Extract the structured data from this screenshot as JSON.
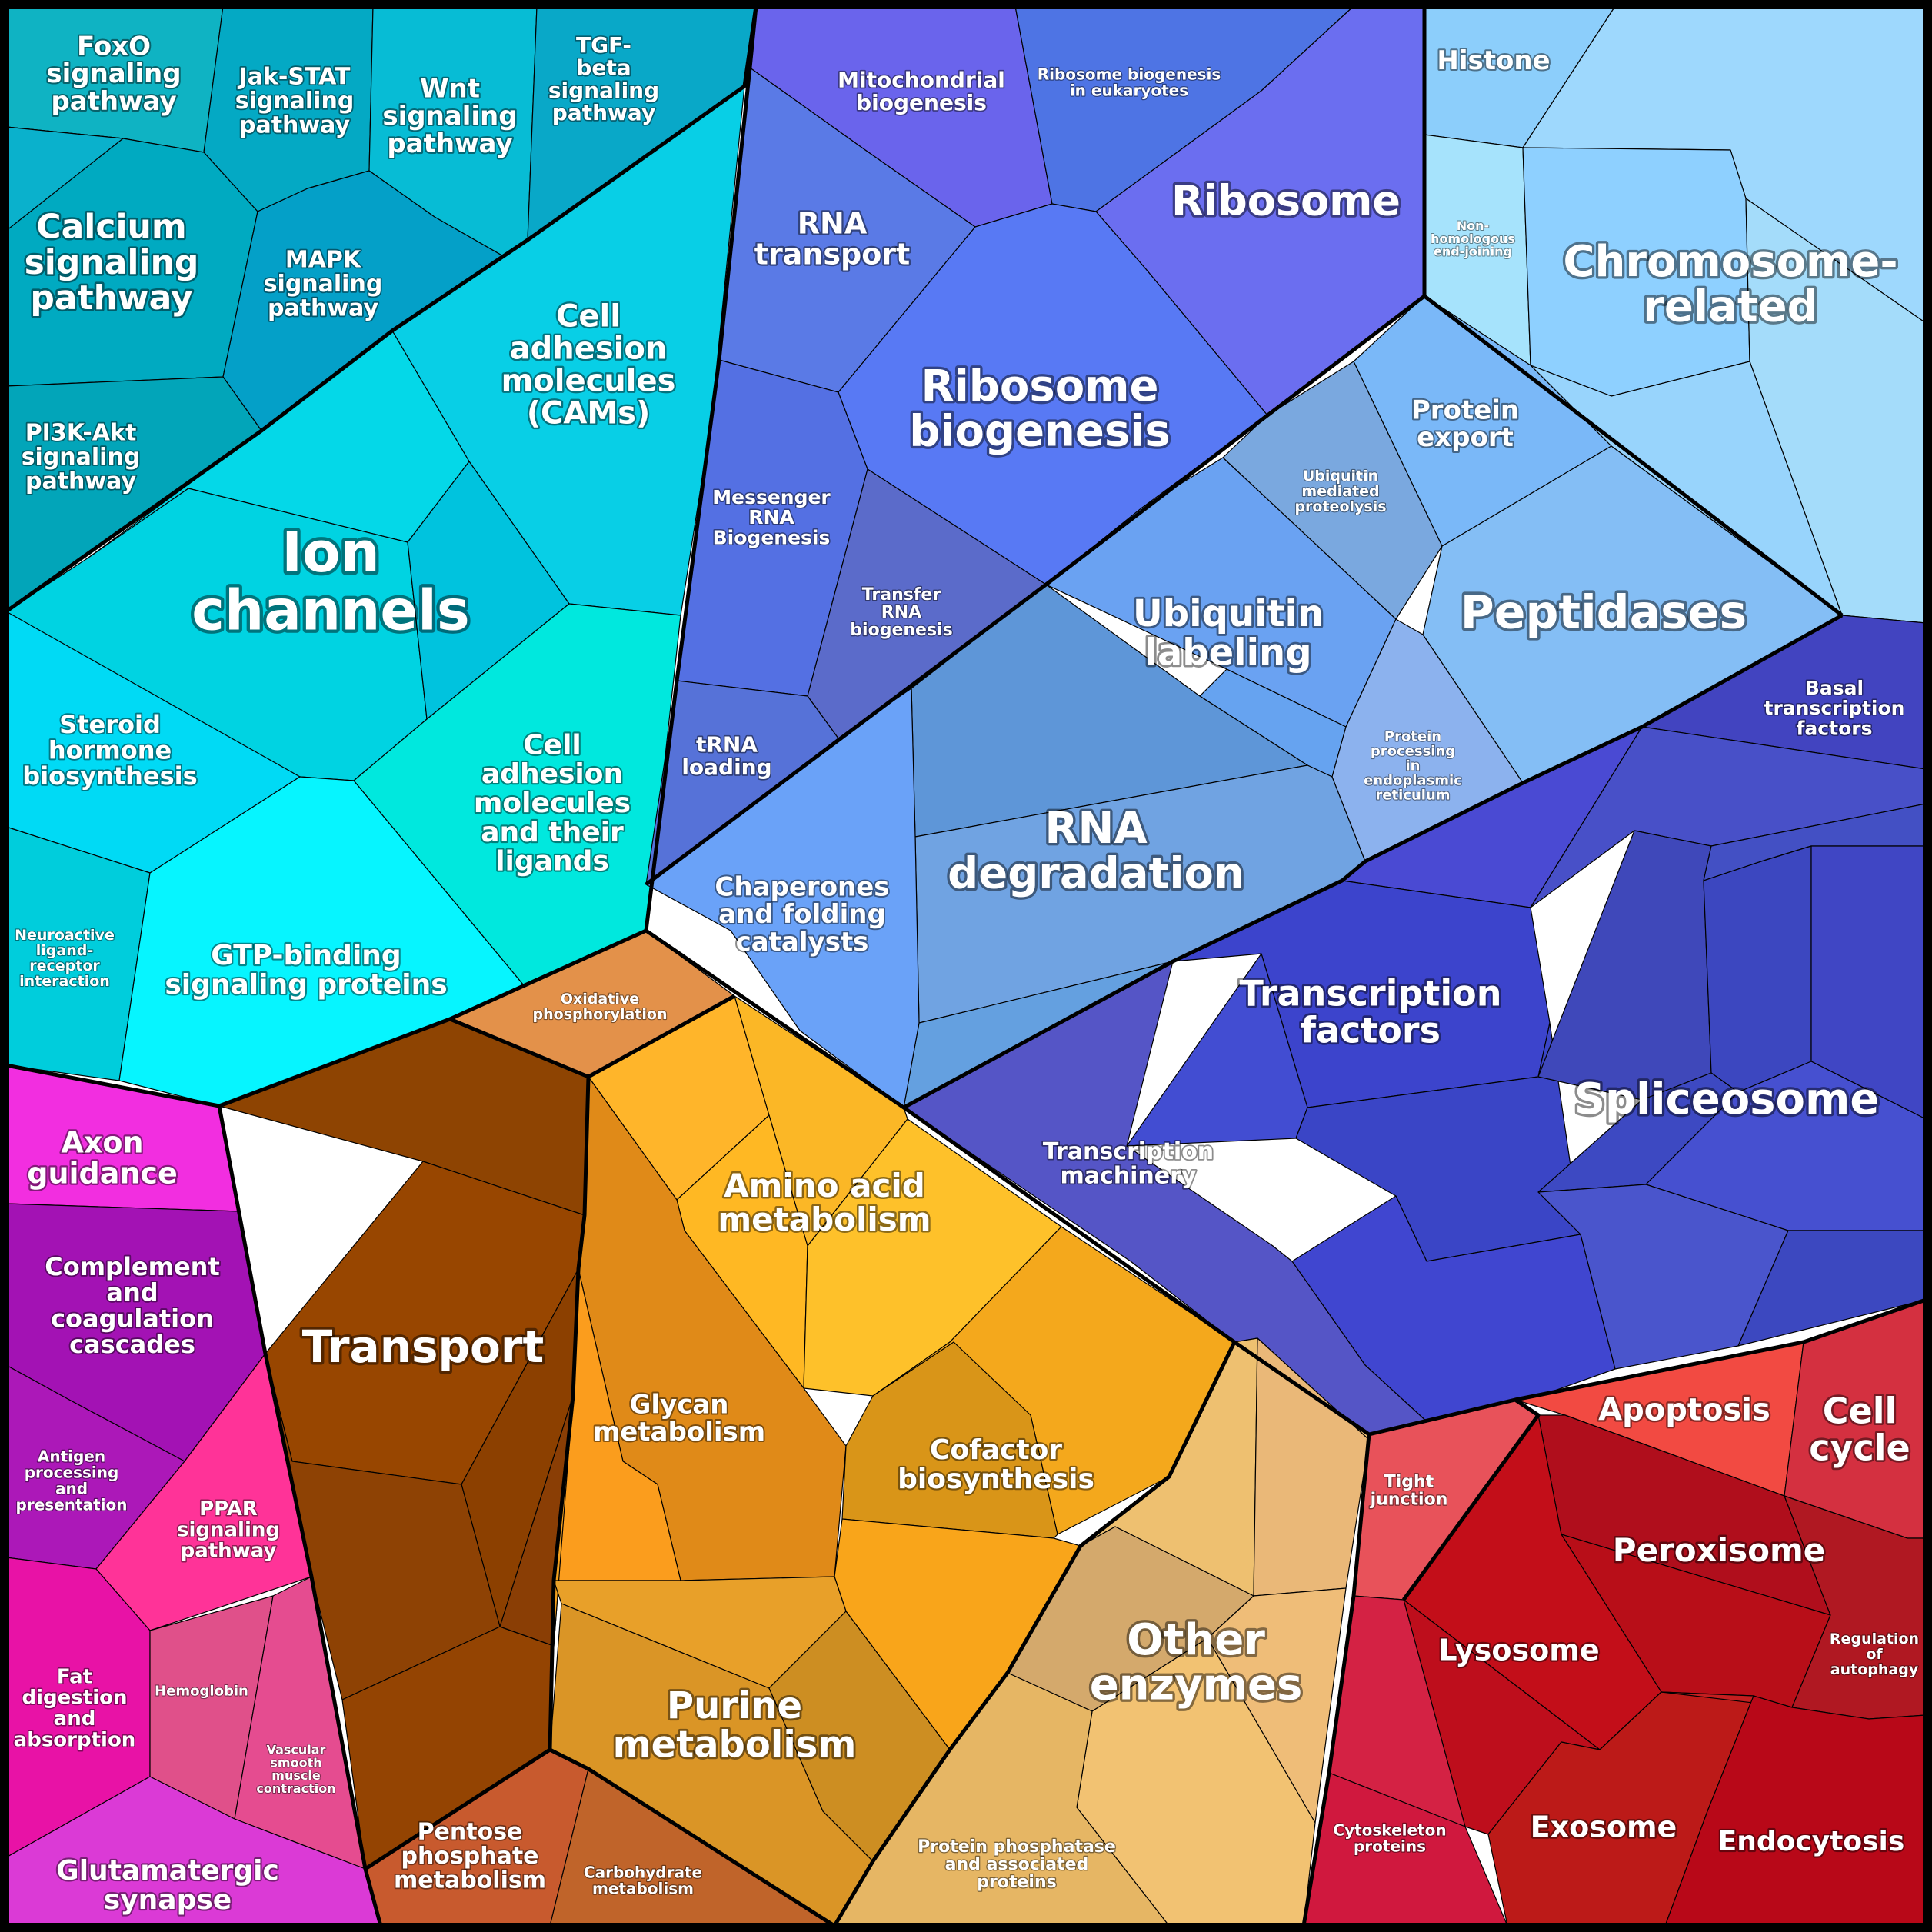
{
  "title": "",
  "regions": [
    {
      "id": "signaling",
      "color": "#08b8cf",
      "labels": [
        {
          "text": "FoxO\nsignaling\npathway",
          "size": 34
        },
        {
          "text": "Jak-STAT\nsignaling\npathway",
          "size": 30
        },
        {
          "text": "Wnt\nsignaling\npathway",
          "size": 34
        },
        {
          "text": "TGF-\nbeta\nsignaling\npathway",
          "size": 28
        },
        {
          "text": "Calcium\nsignaling\npathway",
          "size": 44
        },
        {
          "text": "MAPK\nsignaling\npathway",
          "size": 30
        },
        {
          "text": "PI3K-Akt\nsignaling\npathway",
          "size": 30
        }
      ]
    },
    {
      "id": "channels",
      "color": "#05d6ea",
      "labels": [
        {
          "text": "Cell\nadhesion\nmolecules\n(CAMs)",
          "size": 40
        },
        {
          "text": "Ion\nchannels",
          "size": 72
        },
        {
          "text": "Steroid\nhormone\nbiosynthesis",
          "size": 32
        },
        {
          "text": "Cell\nadhesion\nmolecules\nand their\nligands",
          "size": 36
        },
        {
          "text": "Neuroactive\nligand-\nreceptor\ninteraction",
          "size": 19
        },
        {
          "text": "GTP-binding\nsignaling proteins",
          "size": 36
        }
      ]
    },
    {
      "id": "ribosome",
      "color": "#5a72ee",
      "labels": [
        {
          "text": "Mitochondrial\nbiogenesis",
          "size": 28
        },
        {
          "text": "Ribosome biogenesis\nin eukaryotes",
          "size": 20
        },
        {
          "text": "Ribosome",
          "size": 54
        },
        {
          "text": "RNA\ntransport",
          "size": 38
        },
        {
          "text": "Ribosome\nbiogenesis",
          "size": 56
        },
        {
          "text": "Messenger\nRNA\nBiogenesis",
          "size": 25
        },
        {
          "text": "Transfer\nRNA\nbiogenesis",
          "size": 22
        },
        {
          "text": "tRNA\nloading",
          "size": 28
        }
      ]
    },
    {
      "id": "chromosome",
      "color": "#9ad6fb",
      "labels": [
        {
          "text": "Histone",
          "size": 34
        },
        {
          "text": "Non-\nhomologous\nend-joining",
          "size": 16
        },
        {
          "text": "Chromosome-\nrelated",
          "size": 56
        }
      ]
    },
    {
      "id": "proteolysis",
      "color": "#78b2ef",
      "labels": [
        {
          "text": "Protein\nexport",
          "size": 34
        },
        {
          "text": "Ubiquitin\nmediated\nproteolysis",
          "size": 19
        },
        {
          "text": "Peptidases",
          "size": 60
        },
        {
          "text": "Ubiquitin\nlabeling",
          "size": 48
        },
        {
          "text": "Protein\nprocessing\nin\nendoplasmic\nreticulum",
          "size": 18
        },
        {
          "text": "RNA\ndegradation",
          "size": 56
        },
        {
          "text": "Chaperones\nand folding\ncatalysts",
          "size": 34
        }
      ]
    },
    {
      "id": "transcription",
      "color": "#4450cc",
      "labels": [
        {
          "text": "Basal\ntranscription\nfactors",
          "size": 25
        },
        {
          "text": "Transcription\nfactors",
          "size": 46
        },
        {
          "text": "Spliceosome",
          "size": 56
        },
        {
          "text": "Transcription\nmachinery",
          "size": 30
        }
      ]
    },
    {
      "id": "immune",
      "color": "#c01ab8",
      "labels": [
        {
          "text": "Axon\nguidance",
          "size": 38
        },
        {
          "text": "Complement\nand\ncoagulation\ncascades",
          "size": 32
        },
        {
          "text": "Antigen\nprocessing\nand\npresentation",
          "size": 20
        },
        {
          "text": "PPAR\nsignaling\npathway",
          "size": 26
        },
        {
          "text": "Fat\ndigestion\nand\nabsorption",
          "size": 26
        },
        {
          "text": "Hemoglobin",
          "size": 18
        },
        {
          "text": "Vascular\nsmooth\nmuscle\ncontraction",
          "size": 16
        },
        {
          "text": "Glutamatergic\nsynapse",
          "size": 36
        }
      ]
    },
    {
      "id": "transport",
      "color": "#944400",
      "labels": [
        {
          "text": "Transport",
          "size": 58
        },
        {
          "text": "Oxidative\nphosphorylation",
          "size": 19
        },
        {
          "text": "Pentose\nphosphate\nmetabolism",
          "size": 30
        },
        {
          "text": "Carbohydrate\nmetabolism",
          "size": 20
        }
      ]
    },
    {
      "id": "metabolism",
      "color": "#f4ac22",
      "labels": [
        {
          "text": "Amino acid\nmetabolism",
          "size": 42
        },
        {
          "text": "Glycan\nmetabolism",
          "size": 34
        },
        {
          "text": "Cofactor\nbiosynthesis",
          "size": 36
        },
        {
          "text": "Purine\nmetabolism",
          "size": 48
        }
      ]
    },
    {
      "id": "enzymes",
      "color": "#ecbf7a",
      "labels": [
        {
          "text": "Other\nenzymes",
          "size": 56
        },
        {
          "text": "Protein phosphatase\nand associated\nproteins",
          "size": 22
        }
      ]
    },
    {
      "id": "cellular",
      "color": "#cc1020",
      "labels": [
        {
          "text": "Apoptosis",
          "size": 40
        },
        {
          "text": "Cell\ncycle",
          "size": 46
        },
        {
          "text": "Tight\njunction",
          "size": 22
        },
        {
          "text": "Peroxisome",
          "size": 42
        },
        {
          "text": "Regulation\nof\nautophagy",
          "size": 19
        },
        {
          "text": "Lysosome",
          "size": 38
        },
        {
          "text": "Cytoskeleton\nproteins",
          "size": 20
        },
        {
          "text": "Exosome",
          "size": 38
        },
        {
          "text": "Endocytosis",
          "size": 36
        }
      ]
    }
  ]
}
